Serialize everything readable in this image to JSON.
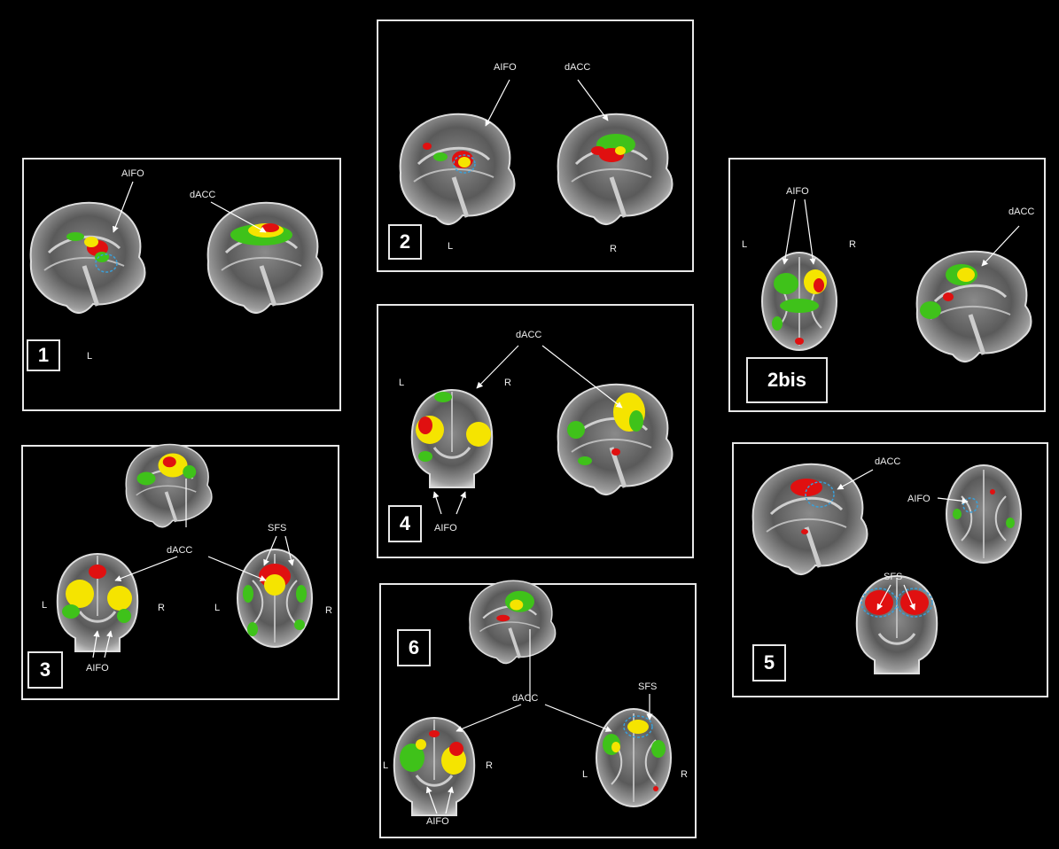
{
  "panels": [
    {
      "number": "1",
      "labels": {
        "a": "AIFO",
        "b": "dACC",
        "side_l": "L"
      }
    },
    {
      "number": "2",
      "labels": {
        "a": "AIFO",
        "b": "dACC",
        "side_l": "L",
        "side_r": "R"
      }
    },
    {
      "number": "2bis",
      "labels": {
        "a": "AIFO",
        "b": "dACC",
        "side_l": "L",
        "side_r": "R"
      }
    },
    {
      "number": "3",
      "labels": {
        "a": "AIFO",
        "b": "dACC",
        "c": "SFS",
        "side_l1": "L",
        "side_r1": "R",
        "side_l2": "L",
        "side_r2": "R"
      }
    },
    {
      "number": "4",
      "labels": {
        "a": "AIFO",
        "b": "dACC",
        "side_l": "L",
        "side_r": "R"
      }
    },
    {
      "number": "5",
      "labels": {
        "a": "AIFO",
        "b": "dACC",
        "c": "SFS"
      }
    },
    {
      "number": "6",
      "labels": {
        "a": "AIFO",
        "b": "dACC",
        "c": "SFS",
        "side_l1": "L",
        "side_r1": "R",
        "side_l2": "L",
        "side_r2": "R"
      }
    }
  ],
  "colors": {
    "activation_red": "#e01010",
    "activation_yellow": "#f5e400",
    "activation_green": "#3fc21a",
    "roi_blue": "#3a9fd8",
    "frame": "#e8e8e8"
  }
}
